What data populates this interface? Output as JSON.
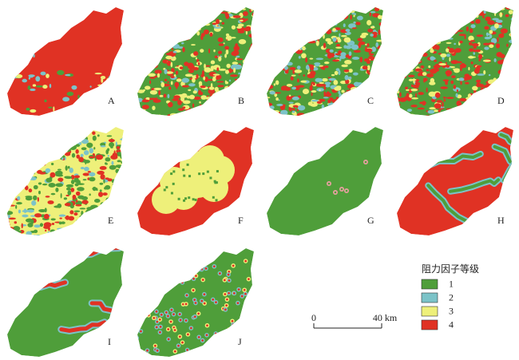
{
  "panels": [
    {
      "label": "A"
    },
    {
      "label": "B"
    },
    {
      "label": "C"
    },
    {
      "label": "D"
    },
    {
      "label": "E"
    },
    {
      "label": "F"
    },
    {
      "label": "G"
    },
    {
      "label": "H"
    },
    {
      "label": "I"
    },
    {
      "label": "J"
    }
  ],
  "legend": {
    "title": "阻力因子等级",
    "items": [
      {
        "label": "1",
        "color": "#4f9e3a"
      },
      {
        "label": "2",
        "color": "#7cc3c8"
      },
      {
        "label": "3",
        "color": "#eef07a"
      },
      {
        "label": "4",
        "color": "#e03224"
      }
    ]
  },
  "scale_bar": {
    "start": "0",
    "end": "40 km"
  }
}
